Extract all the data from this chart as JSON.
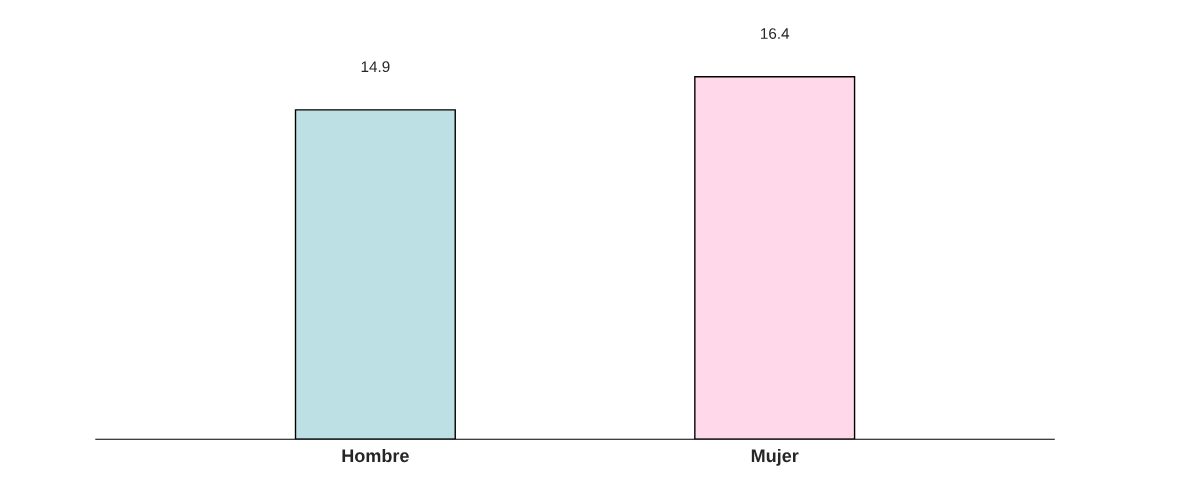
{
  "chart_data": {
    "type": "bar",
    "categories": [
      "Hombre",
      "Mujer"
    ],
    "values": [
      14.9,
      16.4
    ],
    "colors": [
      "#bce0e3",
      "#ffd9ea"
    ],
    "data_labels": true,
    "grid": false,
    "legend": false
  }
}
